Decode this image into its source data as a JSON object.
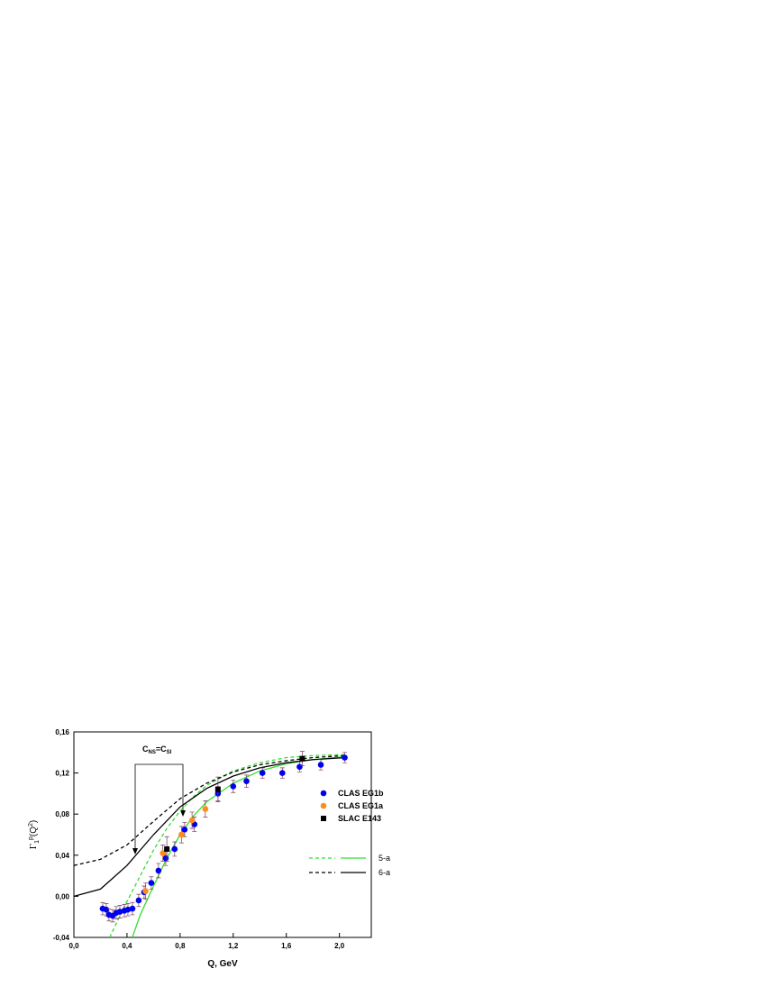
{
  "chart_data": {
    "type": "scatter",
    "xlabel": "Q, GeV",
    "ylabel": [
      "Γ",
      "1",
      "p",
      "(Q",
      "2",
      ")"
    ],
    "annotation": [
      "C",
      "NS",
      "=C",
      "SI"
    ],
    "xlim": [
      0,
      2.24
    ],
    "ylim": [
      -0.04,
      0.16
    ],
    "xticks": [
      {
        "value": 0,
        "label": "0,0"
      },
      {
        "value": 0.4,
        "label": "0,4"
      },
      {
        "value": 0.8,
        "label": "0,8"
      },
      {
        "value": 1.2,
        "label": "1,2"
      },
      {
        "value": 1.6,
        "label": "1,6"
      },
      {
        "value": 2.0,
        "label": "2,0"
      }
    ],
    "yticks": [
      {
        "value": -0.04,
        "label": "-0,04"
      },
      {
        "value": 0,
        "label": "0,00"
      },
      {
        "value": 0.04,
        "label": "0,04"
      },
      {
        "value": 0.08,
        "label": "0,08"
      },
      {
        "value": 0.12,
        "label": "0,12"
      },
      {
        "value": 0.16,
        "label": "0,16"
      }
    ],
    "series": [
      {
        "name": "CLAS EG1b",
        "color": "#0000ee",
        "marker": "circle",
        "x": [
          0.217,
          0.244,
          0.264,
          0.292,
          0.319,
          0.346,
          0.38,
          0.407,
          0.441,
          0.488,
          0.529,
          0.583,
          0.637,
          0.692,
          0.759,
          0.834,
          0.908,
          1.085,
          1.2,
          1.3,
          1.42,
          1.57,
          1.7,
          1.86,
          2.04
        ],
        "values": [
          -0.012,
          -0.013,
          -0.018,
          -0.019,
          -0.016,
          -0.015,
          -0.014,
          -0.013,
          -0.012,
          -0.004,
          0.004,
          0.013,
          0.025,
          0.037,
          0.046,
          0.065,
          0.07,
          0.1,
          0.107,
          0.112,
          0.12,
          0.12,
          0.126,
          0.128,
          0.135
        ],
        "errors": [
          0.006,
          0.006,
          0.006,
          0.006,
          0.006,
          0.006,
          0.006,
          0.006,
          0.006,
          0.006,
          0.006,
          0.006,
          0.007,
          0.007,
          0.007,
          0.007,
          0.007,
          0.007,
          0.006,
          0.006,
          0.005,
          0.005,
          0.005,
          0.005,
          0.005
        ]
      },
      {
        "name": "CLAS EG1a",
        "color": "#ff8c1a",
        "marker": "circle",
        "x": [
          0.54,
          0.67,
          0.81,
          0.89,
          0.99
        ],
        "values": [
          0.005,
          0.042,
          0.06,
          0.074,
          0.085
        ],
        "errors": [
          0.008,
          0.008,
          0.008,
          0.008,
          0.008
        ]
      },
      {
        "name": "SLAC E143",
        "color": "#000000",
        "marker": "square",
        "x": [
          0.7,
          1.085,
          1.72
        ],
        "values": [
          0.046,
          0.104,
          0.134
        ],
        "errors": [
          0.012,
          0.012,
          0.007
        ]
      }
    ],
    "curves": [
      {
        "name": "5-a",
        "color": "#33dd33",
        "dashed": {
          "x": [
            0.27,
            0.35,
            0.4,
            0.5,
            0.6,
            0.7,
            0.8,
            0.9,
            1.0,
            1.2,
            1.4,
            1.6,
            1.8,
            2.05
          ],
          "values": [
            -0.04,
            -0.018,
            -0.005,
            0.02,
            0.045,
            0.066,
            0.083,
            0.097,
            0.108,
            0.122,
            0.13,
            0.135,
            0.137,
            0.138
          ]
        },
        "solid": {
          "x": [
            0.44,
            0.5,
            0.6,
            0.7,
            0.8,
            0.9,
            1.0,
            1.2,
            1.4,
            1.6,
            1.8,
            2.05
          ],
          "values": [
            -0.04,
            -0.018,
            0.01,
            0.037,
            0.06,
            0.078,
            0.092,
            0.11,
            0.122,
            0.129,
            0.133,
            0.136
          ]
        }
      },
      {
        "name": "6-a",
        "color": "#000000",
        "dashed": {
          "x": [
            0,
            0.2,
            0.4,
            0.6,
            0.8,
            1.0,
            1.2,
            1.4,
            1.6,
            1.8,
            2.05
          ],
          "values": [
            0.03,
            0.036,
            0.05,
            0.073,
            0.095,
            0.11,
            0.121,
            0.128,
            0.132,
            0.135,
            0.137
          ]
        },
        "solid": {
          "x": [
            0,
            0.2,
            0.4,
            0.6,
            0.8,
            1.0,
            1.2,
            1.4,
            1.6,
            1.8,
            2.05
          ],
          "values": [
            0,
            0.007,
            0.03,
            0.06,
            0.087,
            0.105,
            0.117,
            0.125,
            0.13,
            0.133,
            0.135
          ]
        }
      }
    ]
  }
}
